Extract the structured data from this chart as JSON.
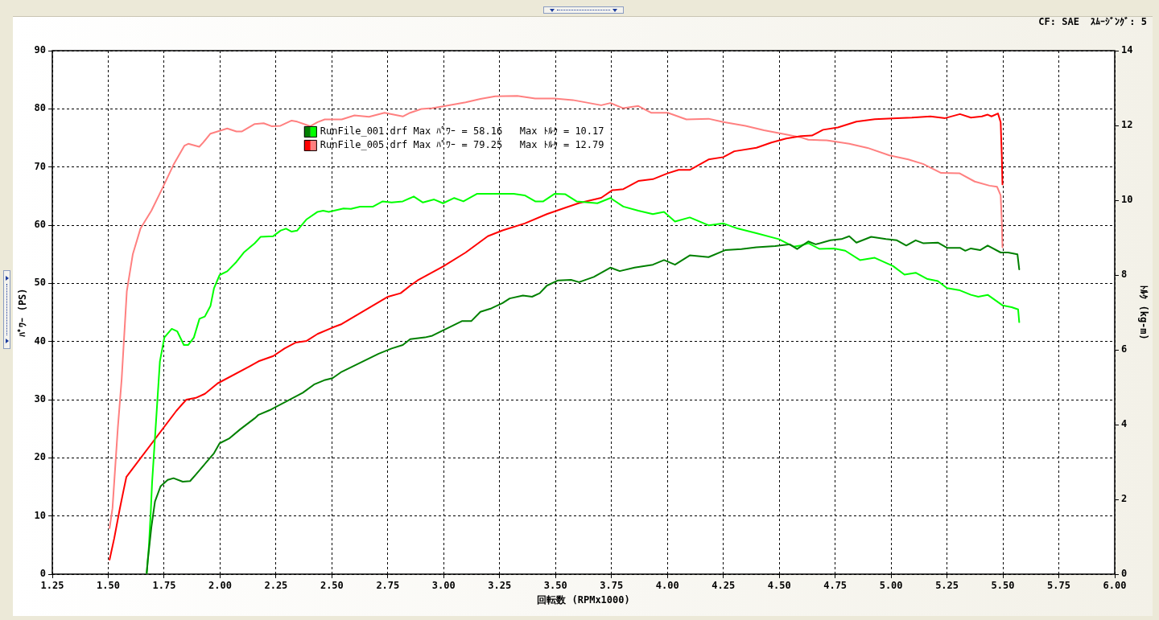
{
  "chart_data": {
    "type": "line",
    "xlabel": "回転数 (RPMx1000)",
    "ylabel": "ﾊﾟﾜｰ (PS)",
    "y2label": "ﾄﾙｸ (kg-m)",
    "annotations": [
      "CF: SAE  ｽﾑｰｼﾞﾝｸﾞ: 5"
    ],
    "xlim": [
      1.25,
      6
    ],
    "xticks": [
      1.25,
      {
        "value": 1.5,
        "label": "1.50"
      },
      1.75,
      {
        "value": 2,
        "label": "2.00"
      },
      2.25,
      {
        "value": 2.5,
        "label": "2.50"
      },
      2.75,
      {
        "value": 3,
        "label": "3.00"
      },
      3.25,
      {
        "value": 3.5,
        "label": "3.50"
      },
      3.75,
      {
        "value": 4,
        "label": "4.00"
      },
      4.25,
      {
        "value": 4.5,
        "label": "4.50"
      },
      4.75,
      {
        "value": 5,
        "label": "5.00"
      },
      5.25,
      {
        "value": 5.5,
        "label": "5.50"
      },
      5.75,
      {
        "value": 6,
        "label": "6.00"
      }
    ],
    "ylim": [
      0,
      90
    ],
    "yticks": [
      0,
      10,
      20,
      30,
      40,
      50,
      60,
      70,
      80,
      90
    ],
    "y2lim": [
      0,
      14
    ],
    "y2ticks": [
      0,
      2,
      4,
      6,
      8,
      10,
      12,
      14
    ],
    "grid": true,
    "legend": "top left",
    "marker": "none",
    "series": [
      {
        "name": "RunFile_001.drf Max ﾊﾟﾜｰ = 58.16   Max ﾄﾙｸ = 10.17",
        "color": "#008000",
        "x": [
          1.672,
          1.677,
          1.693,
          1.709,
          1.734,
          1.766,
          1.792,
          1.833,
          1.866,
          1.891,
          1.973,
          1.998,
          2.04,
          2.09,
          2.155,
          2.172,
          2.222,
          2.37,
          2.42,
          2.47,
          2.503,
          2.544,
          2.709,
          2.767,
          2.817,
          2.85,
          2.916,
          2.949,
          3.081,
          3.123,
          3.164,
          3.213,
          3.263,
          3.295,
          3.354,
          3.395,
          3.429,
          3.461,
          3.511,
          3.569,
          3.605,
          3.671,
          3.745,
          3.787,
          3.853,
          3.935,
          3.985,
          4.034,
          4.1,
          4.184,
          4.258,
          4.331,
          4.398,
          4.482,
          4.547,
          4.58,
          4.63,
          4.663,
          4.729,
          4.778,
          4.813,
          4.845,
          4.911,
          4.977,
          5.026,
          5.068,
          5.11,
          5.143,
          5.209,
          5.25,
          5.308,
          5.332,
          5.357,
          5.398,
          5.432,
          5.49,
          5.523,
          5.565,
          5.573
        ],
        "values": [
          0.2,
          2.4,
          8.1,
          12.5,
          15.1,
          16.2,
          16.5,
          15.9,
          16.0,
          17.1,
          20.8,
          22.5,
          23.3,
          24.9,
          26.8,
          27.4,
          28.2,
          31.2,
          32.6,
          33.4,
          33.7,
          34.8,
          37.9,
          38.8,
          39.4,
          40.4,
          40.7,
          41.0,
          43.5,
          43.5,
          45.1,
          45.7,
          46.6,
          47.4,
          47.9,
          47.7,
          48.3,
          49.6,
          50.5,
          50.6,
          50.2,
          51.1,
          52.7,
          52.1,
          52.7,
          53.2,
          54.0,
          53.2,
          54.8,
          54.5,
          55.7,
          55.9,
          56.2,
          56.4,
          56.7,
          55.9,
          57.2,
          56.7,
          57.4,
          57.6,
          58.1,
          57.0,
          58.0,
          57.6,
          57.4,
          56.5,
          57.4,
          56.9,
          57.0,
          56.1,
          56.1,
          55.6,
          56.0,
          55.7,
          56.5,
          55.3,
          55.3,
          55.0,
          52.4
        ]
      },
      {
        "color": "#00ff00",
        "axis": "y2",
        "x": [
          1.672,
          1.682,
          1.69,
          1.696,
          1.731,
          1.751,
          1.784,
          1.809,
          1.838,
          1.858,
          1.883,
          1.908,
          1.932,
          1.957,
          1.973,
          1.998,
          2.032,
          2.073,
          2.106,
          2.155,
          2.181,
          2.238,
          2.271,
          2.295,
          2.32,
          2.345,
          2.387,
          2.436,
          2.461,
          2.486,
          2.552,
          2.585,
          2.626,
          2.684,
          2.727,
          2.767,
          2.817,
          2.866,
          2.907,
          2.957,
          2.997,
          3.047,
          3.088,
          3.148,
          3.23,
          3.313,
          3.362,
          3.409,
          3.445,
          3.495,
          3.544,
          3.594,
          3.687,
          3.745,
          3.803,
          3.87,
          3.935,
          3.985,
          4.034,
          4.1,
          4.184,
          4.25,
          4.316,
          4.398,
          4.498,
          4.564,
          4.597,
          4.63,
          4.679,
          4.745,
          4.795,
          4.861,
          4.927,
          5.009,
          5.06,
          5.11,
          5.16,
          5.209,
          5.25,
          5.308,
          5.357,
          5.39,
          5.432,
          5.498,
          5.539,
          5.568,
          5.573
        ],
        "values": [
          0.03,
          0.76,
          1.65,
          2.44,
          5.69,
          6.33,
          6.56,
          6.49,
          6.13,
          6.13,
          6.33,
          6.83,
          6.89,
          7.17,
          7.65,
          8.0,
          8.1,
          8.35,
          8.6,
          8.85,
          9.02,
          9.04,
          9.19,
          9.24,
          9.16,
          9.19,
          9.49,
          9.69,
          9.72,
          9.69,
          9.78,
          9.77,
          9.83,
          9.83,
          9.97,
          9.94,
          9.97,
          10.1,
          9.94,
          10.02,
          9.92,
          10.06,
          9.97,
          10.17,
          10.17,
          10.17,
          10.13,
          9.97,
          9.97,
          10.17,
          10.16,
          9.97,
          9.92,
          10.06,
          9.83,
          9.72,
          9.63,
          9.69,
          9.43,
          9.54,
          9.33,
          9.38,
          9.24,
          9.12,
          8.96,
          8.76,
          8.79,
          8.85,
          8.7,
          8.71,
          8.65,
          8.4,
          8.46,
          8.24,
          8.01,
          8.06,
          7.9,
          7.84,
          7.65,
          7.59,
          7.47,
          7.42,
          7.47,
          7.19,
          7.14,
          7.08,
          6.74
        ]
      },
      {
        "name": "RunFile_005.drf Max ﾊﾟﾜｰ = 79.25   Max ﾄﾙｸ = 12.79",
        "color": "#ff0000",
        "x": [
          1.506,
          1.527,
          1.552,
          1.569,
          1.581,
          1.805,
          1.849,
          1.891,
          1.932,
          1.989,
          2.13,
          2.172,
          2.238,
          2.288,
          2.337,
          2.387,
          2.436,
          2.503,
          2.544,
          2.751,
          2.807,
          2.85,
          2.883,
          2.997,
          3.098,
          3.197,
          3.263,
          3.362,
          3.461,
          3.544,
          3.605,
          3.704,
          3.753,
          3.803,
          3.87,
          3.935,
          4.0,
          4.05,
          4.1,
          4.184,
          4.25,
          4.299,
          4.398,
          4.465,
          4.531,
          4.597,
          4.646,
          4.696,
          4.762,
          4.845,
          4.927,
          5.026,
          5.093,
          5.176,
          5.242,
          5.308,
          5.357,
          5.406,
          5.432,
          5.449,
          5.478,
          5.49,
          5.495,
          5.498
        ],
        "values": [
          2.5,
          6.2,
          11.3,
          14.5,
          16.7,
          28.1,
          30.0,
          30.3,
          31.0,
          32.8,
          35.7,
          36.6,
          37.5,
          38.8,
          39.8,
          40.1,
          41.3,
          42.4,
          43.0,
          47.7,
          48.3,
          49.6,
          50.5,
          52.9,
          55.3,
          58.1,
          59.1,
          60.3,
          61.9,
          63.0,
          63.8,
          64.7,
          66.0,
          66.2,
          67.6,
          67.9,
          68.9,
          69.5,
          69.5,
          71.3,
          71.7,
          72.7,
          73.3,
          74.2,
          74.9,
          75.3,
          75.4,
          76.4,
          76.8,
          77.8,
          78.2,
          78.4,
          78.5,
          78.7,
          78.4,
          79.1,
          78.5,
          78.7,
          79.0,
          78.7,
          79.2,
          77.7,
          72.0,
          67.0
        ]
      },
      {
        "color": "#ff8080",
        "axis": "y2",
        "x": [
          1.506,
          1.519,
          1.543,
          1.56,
          1.583,
          1.61,
          1.644,
          1.693,
          1.743,
          1.792,
          1.841,
          1.858,
          1.907,
          1.924,
          1.957,
          2.032,
          2.073,
          2.098,
          2.155,
          2.195,
          2.23,
          2.27,
          2.32,
          2.345,
          2.404,
          2.436,
          2.468,
          2.544,
          2.601,
          2.666,
          2.735,
          2.767,
          2.817,
          2.85,
          2.9,
          2.949,
          2.997,
          3.098,
          3.164,
          3.23,
          3.329,
          3.409,
          3.495,
          3.577,
          3.704,
          3.745,
          3.803,
          3.87,
          3.927,
          4.002,
          4.085,
          4.184,
          4.25,
          4.349,
          4.432,
          4.531,
          4.597,
          4.63,
          4.712,
          4.813,
          4.895,
          4.993,
          5.077,
          5.143,
          5.224,
          5.307,
          5.374,
          5.44,
          5.474,
          5.49,
          5.495,
          5.498
        ],
        "values": [
          1.23,
          1.76,
          3.92,
          5.21,
          7.56,
          8.56,
          9.24,
          9.72,
          10.33,
          10.95,
          11.46,
          11.51,
          11.43,
          11.54,
          11.78,
          11.92,
          11.84,
          11.84,
          12.04,
          12.06,
          11.98,
          11.99,
          12.13,
          12.1,
          11.98,
          12.09,
          12.16,
          12.16,
          12.27,
          12.23,
          12.34,
          12.3,
          12.24,
          12.34,
          12.44,
          12.46,
          12.51,
          12.62,
          12.71,
          12.78,
          12.79,
          12.72,
          12.72,
          12.68,
          12.54,
          12.6,
          12.46,
          12.52,
          12.34,
          12.34,
          12.16,
          12.18,
          12.09,
          11.99,
          11.87,
          11.76,
          11.68,
          11.62,
          11.6,
          11.51,
          11.4,
          11.2,
          11.09,
          10.97,
          10.73,
          10.72,
          10.5,
          10.39,
          10.36,
          10.13,
          9.43,
          8.74
        ]
      }
    ]
  }
}
